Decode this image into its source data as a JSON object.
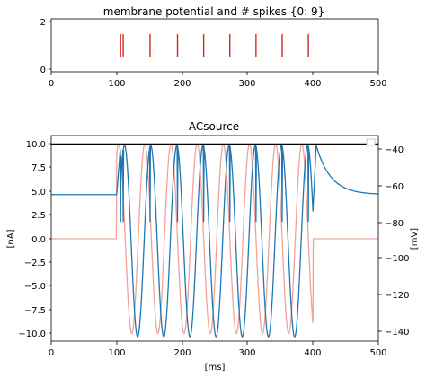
{
  "chart_data": [
    {
      "type": "raster",
      "title": "membrane potential and # spikes {0: 9}",
      "xlim": [
        0,
        500
      ],
      "ylim": [
        -0.1,
        2.1
      ],
      "x_ticks": [
        "0",
        "100",
        "200",
        "300",
        "400",
        "500"
      ],
      "y_ticks": [
        "0",
        "2"
      ],
      "spike_color": "#d62728",
      "spike_times": [
        106,
        110,
        151,
        193,
        233,
        273,
        313,
        353,
        393
      ],
      "spike_row": 1,
      "spike_height": 0.95
    },
    {
      "type": "line",
      "title": "ACsource",
      "xlabel": "[ms]",
      "ylabel_left": "[nA]",
      "ylabel_right": "[mV]",
      "xlim": [
        0,
        500
      ],
      "ylim_left": [
        -10.8,
        10.8
      ],
      "ylim_right": [
        -146,
        -34
      ],
      "x_ticks": [
        "0",
        "100",
        "200",
        "300",
        "400",
        "500"
      ],
      "y_ticks_left": [
        "10.0",
        "7.5",
        "5.0",
        "2.5",
        "0.0",
        "−2.5",
        "−5.0",
        "−7.5",
        "−10.0"
      ],
      "y_ticks_right": [
        "−40",
        "−60",
        "−80",
        "−100",
        "−120",
        "−140"
      ],
      "series": [
        {
          "axis": "left",
          "color": "#f0a39b",
          "description": "sinusoidal current, 0 nA before 100 ms and after 400 ms, amplitude 10 nA, period 40 ms",
          "start": 100,
          "end": 400,
          "amplitude": 10,
          "period": 40
        },
        {
          "axis": "left",
          "color": "#000000",
          "description": "constant 10 nA reference line",
          "value": 10
        },
        {
          "axis": "right",
          "color": "#1f77b4",
          "description": "membrane potential: rest about -65 mV, oscillating between about -143 and -38 mV during stimulation, decaying back to rest after 400 ms",
          "rest": -65,
          "min": -143,
          "max": -38,
          "spike_troughs": [
            -80,
            -80,
            -80,
            -80,
            -80,
            -80,
            -80,
            -80,
            -80
          ]
        }
      ]
    }
  ]
}
